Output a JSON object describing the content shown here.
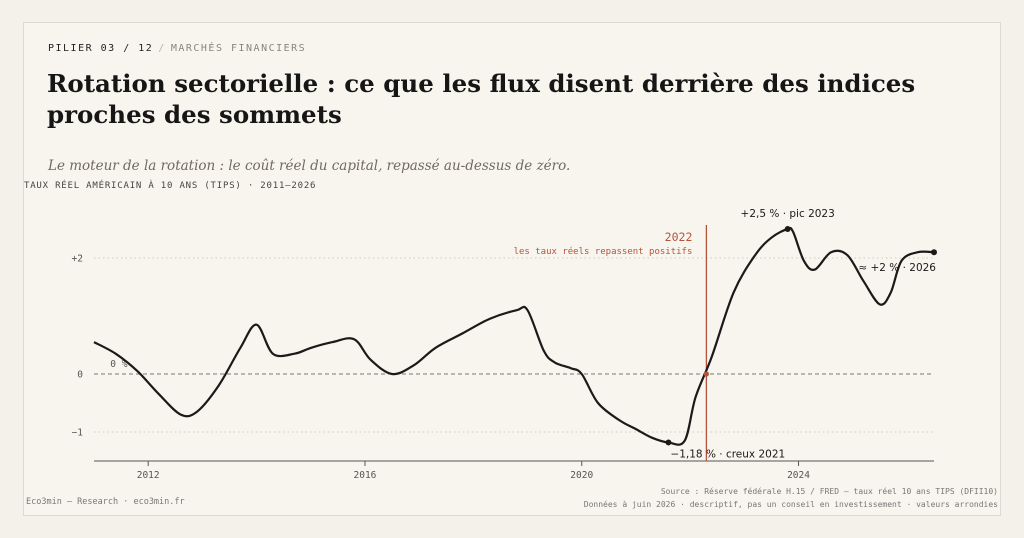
{
  "header": {
    "pillar": "PILIER 03 / 12",
    "separator": "/",
    "section": "MARCHÉS FINANCIERS"
  },
  "title": "Rotation sectorielle : ce que les flux disent derrière des indices proches des sommets",
  "subtitle": "Le moteur de la rotation : le coût réel du capital, repassé au-dessus de zéro.",
  "chart_label": "TAUX RÉEL AMÉRICAIN À 10 ANS (TIPS) · 2011–2026",
  "chart_data": {
    "type": "line",
    "title": "TAUX RÉEL AMÉRICAIN À 10 ANS (TIPS) · 2011–2026",
    "xlim": [
      2011,
      2026.5
    ],
    "ylim": [
      -1.5,
      3.0
    ],
    "x_ticks": [
      2012,
      2016,
      2020,
      2024
    ],
    "x_tick_labels": [
      "2012",
      "2016",
      "2020",
      "2024"
    ],
    "y_ticks": [
      2,
      0,
      -1
    ],
    "y_tick_labels": [
      "+2",
      "0",
      "−1"
    ],
    "zero_label": "0 %",
    "grid": "horizontal dotted at +2, dashed at 0",
    "series": [
      {
        "x": [
          2011.0,
          2011.4,
          2011.8,
          2012.2,
          2012.6,
          2012.9,
          2013.3,
          2013.7,
          2014.0,
          2014.3,
          2014.7,
          2015.0,
          2015.4,
          2015.8,
          2016.1,
          2016.5,
          2016.9,
          2017.3,
          2017.8,
          2018.3,
          2018.8,
          2019.0,
          2019.3,
          2019.5,
          2019.8,
          2020.0,
          2020.3,
          2020.7,
          2021.0,
          2021.3,
          2021.6,
          2021.9,
          2022.1,
          2022.4,
          2022.8,
          2023.2,
          2023.5,
          2023.8,
          2023.9,
          2024.1,
          2024.3,
          2024.6,
          2024.9,
          2025.2,
          2025.5,
          2025.7,
          2025.9,
          2026.2,
          2026.5
        ],
        "y": [
          0.55,
          0.35,
          0.05,
          -0.35,
          -0.7,
          -0.65,
          -0.2,
          0.45,
          0.85,
          0.35,
          0.35,
          0.45,
          0.55,
          0.6,
          0.25,
          0.0,
          0.15,
          0.45,
          0.7,
          0.95,
          1.1,
          1.1,
          0.4,
          0.2,
          0.1,
          0.0,
          -0.5,
          -0.8,
          -0.95,
          -1.1,
          -1.18,
          -1.15,
          -0.4,
          0.3,
          1.4,
          2.05,
          2.35,
          2.5,
          2.45,
          1.95,
          1.8,
          2.1,
          2.05,
          1.6,
          1.2,
          1.4,
          1.95,
          2.1,
          2.1
        ]
      }
    ],
    "marker_event": {
      "x": 2022.3,
      "year": "2022",
      "text": "les taux réels repassent positifs",
      "color": "#b5533c"
    },
    "annotations": [
      {
        "x": 2021.6,
        "y": -1.18,
        "label": "−1,18 % · creux 2021"
      },
      {
        "x": 2023.8,
        "y": 2.5,
        "label": "+2,5 % · pic 2023"
      },
      {
        "x": 2026.5,
        "y": 2.1,
        "label": "≈ +2 % · 2026"
      }
    ],
    "line_color": "#1c1a19"
  },
  "footer": {
    "left": "Eco3min — Research · eco3min.fr",
    "source": "Source : Réserve fédérale H.15 / FRED — taux réel 10 ans TIPS (DFII10)",
    "note": "Données à juin 2026 · descriptif, pas un conseil en investissement · valeurs arrondies"
  }
}
